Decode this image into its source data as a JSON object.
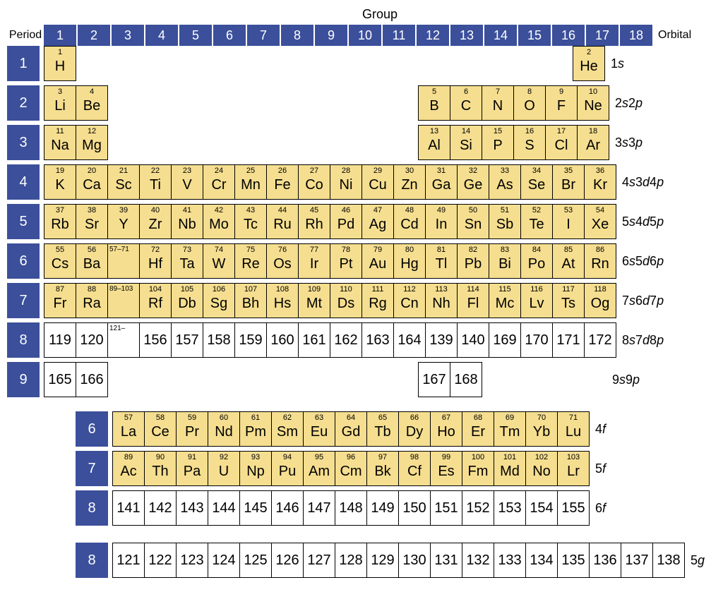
{
  "colors": {
    "header_bg": "#3b4f9b",
    "header_fg": "#ffffff",
    "element_bg": "#f5de8f",
    "future_bg": "#ffffff",
    "border": "#000000",
    "page_bg": "#ffffff",
    "text": "#000000"
  },
  "fontsize": {
    "title": 18,
    "header_num": 18,
    "period_num": 20,
    "atomic_num": 11,
    "symbol": 20,
    "orbital": 18
  },
  "labels": {
    "group": "Group",
    "period": "Period",
    "orbital": "Orbital"
  },
  "groups": [
    "1",
    "2",
    "3",
    "4",
    "5",
    "6",
    "7",
    "8",
    "9",
    "10",
    "11",
    "12",
    "13",
    "14",
    "15",
    "16",
    "17",
    "18"
  ],
  "periods": {
    "p1": {
      "num": "1",
      "orbital": "1s"
    },
    "p2": {
      "num": "2",
      "orbital": "2s2p"
    },
    "p3": {
      "num": "3",
      "orbital": "3s3p"
    },
    "p4": {
      "num": "4",
      "orbital": "4s3d4p"
    },
    "p5": {
      "num": "5",
      "orbital": "5s4d5p"
    },
    "p6": {
      "num": "6",
      "orbital": "6s5d6p"
    },
    "p7": {
      "num": "7",
      "orbital": "7s6d7p"
    },
    "p8": {
      "num": "8",
      "orbital": "8s7d8p"
    },
    "p9": {
      "num": "9",
      "orbital": "9s9p"
    },
    "f6": {
      "num": "6",
      "orbital": "4f"
    },
    "f7": {
      "num": "7",
      "orbital": "5f"
    },
    "f8": {
      "num": "8",
      "orbital": "6f"
    },
    "g8": {
      "num": "8",
      "orbital": "5g"
    }
  },
  "elements": {
    "H": {
      "n": "1",
      "s": "H"
    },
    "He": {
      "n": "2",
      "s": "He"
    },
    "Li": {
      "n": "3",
      "s": "Li"
    },
    "Be": {
      "n": "4",
      "s": "Be"
    },
    "B": {
      "n": "5",
      "s": "B"
    },
    "C": {
      "n": "6",
      "s": "C"
    },
    "N": {
      "n": "7",
      "s": "N"
    },
    "O": {
      "n": "8",
      "s": "O"
    },
    "F": {
      "n": "9",
      "s": "F"
    },
    "Ne": {
      "n": "10",
      "s": "Ne"
    },
    "Na": {
      "n": "11",
      "s": "Na"
    },
    "Mg": {
      "n": "12",
      "s": "Mg"
    },
    "Al": {
      "n": "13",
      "s": "Al"
    },
    "Si": {
      "n": "14",
      "s": "Si"
    },
    "P": {
      "n": "15",
      "s": "P"
    },
    "S": {
      "n": "16",
      "s": "S"
    },
    "Cl": {
      "n": "17",
      "s": "Cl"
    },
    "Ar": {
      "n": "18",
      "s": "Ar"
    },
    "K": {
      "n": "19",
      "s": "K"
    },
    "Ca": {
      "n": "20",
      "s": "Ca"
    },
    "Sc": {
      "n": "21",
      "s": "Sc"
    },
    "Ti": {
      "n": "22",
      "s": "Ti"
    },
    "V": {
      "n": "23",
      "s": "V"
    },
    "Cr": {
      "n": "24",
      "s": "Cr"
    },
    "Mn": {
      "n": "25",
      "s": "Mn"
    },
    "Fe": {
      "n": "26",
      "s": "Fe"
    },
    "Co": {
      "n": "27",
      "s": "Co"
    },
    "Ni": {
      "n": "28",
      "s": "Ni"
    },
    "Cu": {
      "n": "29",
      "s": "Cu"
    },
    "Zn": {
      "n": "30",
      "s": "Zn"
    },
    "Ga": {
      "n": "31",
      "s": "Ga"
    },
    "Ge": {
      "n": "32",
      "s": "Ge"
    },
    "As": {
      "n": "33",
      "s": "As"
    },
    "Se": {
      "n": "34",
      "s": "Se"
    },
    "Br": {
      "n": "35",
      "s": "Br"
    },
    "Kr": {
      "n": "36",
      "s": "Kr"
    },
    "Rb": {
      "n": "37",
      "s": "Rb"
    },
    "Sr": {
      "n": "38",
      "s": "Sr"
    },
    "Y": {
      "n": "39",
      "s": "Y"
    },
    "Zr": {
      "n": "40",
      "s": "Zr"
    },
    "Nb": {
      "n": "41",
      "s": "Nb"
    },
    "Mo": {
      "n": "42",
      "s": "Mo"
    },
    "Tc": {
      "n": "43",
      "s": "Tc"
    },
    "Ru": {
      "n": "44",
      "s": "Ru"
    },
    "Rh": {
      "n": "45",
      "s": "Rh"
    },
    "Pd": {
      "n": "46",
      "s": "Pd"
    },
    "Ag": {
      "n": "47",
      "s": "Ag"
    },
    "Cd": {
      "n": "48",
      "s": "Cd"
    },
    "In": {
      "n": "49",
      "s": "In"
    },
    "Sn": {
      "n": "50",
      "s": "Sn"
    },
    "Sb": {
      "n": "51",
      "s": "Sb"
    },
    "Te": {
      "n": "52",
      "s": "Te"
    },
    "I": {
      "n": "53",
      "s": "I"
    },
    "Xe": {
      "n": "54",
      "s": "Xe"
    },
    "Cs": {
      "n": "55",
      "s": "Cs"
    },
    "Ba": {
      "n": "56",
      "s": "Ba"
    },
    "LaLu": {
      "n": "57–71",
      "s": ""
    },
    "Hf": {
      "n": "72",
      "s": "Hf"
    },
    "Ta": {
      "n": "73",
      "s": "Ta"
    },
    "W": {
      "n": "74",
      "s": "W"
    },
    "Re": {
      "n": "75",
      "s": "Re"
    },
    "Os": {
      "n": "76",
      "s": "Os"
    },
    "Ir": {
      "n": "77",
      "s": "Ir"
    },
    "Pt": {
      "n": "78",
      "s": "Pt"
    },
    "Au": {
      "n": "79",
      "s": "Au"
    },
    "Hg": {
      "n": "80",
      "s": "Hg"
    },
    "Tl": {
      "n": "81",
      "s": "Tl"
    },
    "Pb": {
      "n": "82",
      "s": "Pb"
    },
    "Bi": {
      "n": "83",
      "s": "Bi"
    },
    "Po": {
      "n": "84",
      "s": "Po"
    },
    "At": {
      "n": "85",
      "s": "At"
    },
    "Rn": {
      "n": "86",
      "s": "Rn"
    },
    "Fr": {
      "n": "87",
      "s": "Fr"
    },
    "Ra": {
      "n": "88",
      "s": "Ra"
    },
    "AcLr": {
      "n": "89–103",
      "s": ""
    },
    "Rf": {
      "n": "104",
      "s": "Rf"
    },
    "Db": {
      "n": "105",
      "s": "Db"
    },
    "Sg": {
      "n": "106",
      "s": "Sg"
    },
    "Bh": {
      "n": "107",
      "s": "Bh"
    },
    "Hs": {
      "n": "108",
      "s": "Hs"
    },
    "Mt": {
      "n": "109",
      "s": "Mt"
    },
    "Ds": {
      "n": "110",
      "s": "Ds"
    },
    "Rg": {
      "n": "111",
      "s": "Rg"
    },
    "Cn": {
      "n": "112",
      "s": "Cn"
    },
    "Nh": {
      "n": "113",
      "s": "Nh"
    },
    "Fl": {
      "n": "114",
      "s": "Fl"
    },
    "Mc": {
      "n": "115",
      "s": "Mc"
    },
    "Lv": {
      "n": "116",
      "s": "Lv"
    },
    "Ts": {
      "n": "117",
      "s": "Ts"
    },
    "Og": {
      "n": "118",
      "s": "Og"
    },
    "e119": {
      "n": "",
      "s": "119"
    },
    "e120": {
      "n": "",
      "s": "120"
    },
    "e121r": {
      "n": "121–",
      "s": ""
    },
    "e156": {
      "n": "",
      "s": "156"
    },
    "e157": {
      "n": "",
      "s": "157"
    },
    "e158": {
      "n": "",
      "s": "158"
    },
    "e159": {
      "n": "",
      "s": "159"
    },
    "e160": {
      "n": "",
      "s": "160"
    },
    "e161": {
      "n": "",
      "s": "161"
    },
    "e162": {
      "n": "",
      "s": "162"
    },
    "e163": {
      "n": "",
      "s": "163"
    },
    "e164": {
      "n": "",
      "s": "164"
    },
    "e139": {
      "n": "",
      "s": "139"
    },
    "e140": {
      "n": "",
      "s": "140"
    },
    "e169": {
      "n": "",
      "s": "169"
    },
    "e170": {
      "n": "",
      "s": "170"
    },
    "e171": {
      "n": "",
      "s": "171"
    },
    "e172": {
      "n": "",
      "s": "172"
    },
    "e165": {
      "n": "",
      "s": "165"
    },
    "e166": {
      "n": "",
      "s": "166"
    },
    "e167": {
      "n": "",
      "s": "167"
    },
    "e168": {
      "n": "",
      "s": "168"
    },
    "La": {
      "n": "57",
      "s": "La"
    },
    "Ce": {
      "n": "58",
      "s": "Ce"
    },
    "Pr": {
      "n": "59",
      "s": "Pr"
    },
    "Nd": {
      "n": "60",
      "s": "Nd"
    },
    "Pm": {
      "n": "61",
      "s": "Pm"
    },
    "Sm": {
      "n": "62",
      "s": "Sm"
    },
    "Eu": {
      "n": "63",
      "s": "Eu"
    },
    "Gd": {
      "n": "64",
      "s": "Gd"
    },
    "Tb": {
      "n": "65",
      "s": "Tb"
    },
    "Dy": {
      "n": "66",
      "s": "Dy"
    },
    "Ho": {
      "n": "67",
      "s": "Ho"
    },
    "Er": {
      "n": "68",
      "s": "Er"
    },
    "Tm": {
      "n": "69",
      "s": "Tm"
    },
    "Yb": {
      "n": "70",
      "s": "Yb"
    },
    "Lu": {
      "n": "71",
      "s": "Lu"
    },
    "Ac": {
      "n": "89",
      "s": "Ac"
    },
    "Th": {
      "n": "90",
      "s": "Th"
    },
    "Pa": {
      "n": "91",
      "s": "Pa"
    },
    "U": {
      "n": "92",
      "s": "U"
    },
    "Np": {
      "n": "93",
      "s": "Np"
    },
    "Pu": {
      "n": "94",
      "s": "Pu"
    },
    "Am": {
      "n": "95",
      "s": "Am"
    },
    "Cm": {
      "n": "96",
      "s": "Cm"
    },
    "Bk": {
      "n": "97",
      "s": "Bk"
    },
    "Cf": {
      "n": "98",
      "s": "Cf"
    },
    "Es": {
      "n": "99",
      "s": "Es"
    },
    "Fm": {
      "n": "100",
      "s": "Fm"
    },
    "Md": {
      "n": "101",
      "s": "Md"
    },
    "No": {
      "n": "102",
      "s": "No"
    },
    "Lr": {
      "n": "103",
      "s": "Lr"
    },
    "e141": {
      "n": "",
      "s": "141"
    },
    "e142": {
      "n": "",
      "s": "142"
    },
    "e143": {
      "n": "",
      "s": "143"
    },
    "e144": {
      "n": "",
      "s": "144"
    },
    "e145": {
      "n": "",
      "s": "145"
    },
    "e146": {
      "n": "",
      "s": "146"
    },
    "e147": {
      "n": "",
      "s": "147"
    },
    "e148": {
      "n": "",
      "s": "148"
    },
    "e149": {
      "n": "",
      "s": "149"
    },
    "e150": {
      "n": "",
      "s": "150"
    },
    "e151": {
      "n": "",
      "s": "151"
    },
    "e152": {
      "n": "",
      "s": "152"
    },
    "e153": {
      "n": "",
      "s": "153"
    },
    "e154": {
      "n": "",
      "s": "154"
    },
    "e155": {
      "n": "",
      "s": "155"
    },
    "e121": {
      "n": "",
      "s": "121"
    },
    "e122": {
      "n": "",
      "s": "122"
    },
    "e123": {
      "n": "",
      "s": "123"
    },
    "e124": {
      "n": "",
      "s": "124"
    },
    "e125": {
      "n": "",
      "s": "125"
    },
    "e126": {
      "n": "",
      "s": "126"
    },
    "e127": {
      "n": "",
      "s": "127"
    },
    "e128": {
      "n": "",
      "s": "128"
    },
    "e129": {
      "n": "",
      "s": "129"
    },
    "e130": {
      "n": "",
      "s": "130"
    },
    "e131": {
      "n": "",
      "s": "131"
    },
    "e132": {
      "n": "",
      "s": "132"
    },
    "e133": {
      "n": "",
      "s": "133"
    },
    "e134": {
      "n": "",
      "s": "134"
    },
    "e135": {
      "n": "",
      "s": "135"
    },
    "e136": {
      "n": "",
      "s": "136"
    },
    "e137": {
      "n": "",
      "s": "137"
    },
    "e138": {
      "n": "",
      "s": "138"
    }
  },
  "layout": {
    "main": [
      {
        "period": "p1",
        "cells": [
          "H",
          null,
          null,
          null,
          null,
          null,
          null,
          null,
          null,
          null,
          null,
          null,
          null,
          null,
          null,
          null,
          null,
          "He"
        ]
      },
      {
        "period": "p2",
        "cells": [
          "Li",
          "Be",
          null,
          null,
          null,
          null,
          null,
          null,
          null,
          null,
          null,
          null,
          "B",
          "C",
          "N",
          "O",
          "F",
          "Ne"
        ]
      },
      {
        "period": "p3",
        "cells": [
          "Na",
          "Mg",
          null,
          null,
          null,
          null,
          null,
          null,
          null,
          null,
          null,
          null,
          "Al",
          "Si",
          "P",
          "S",
          "Cl",
          "Ar"
        ]
      },
      {
        "period": "p4",
        "cells": [
          "K",
          "Ca",
          "Sc",
          "Ti",
          "V",
          "Cr",
          "Mn",
          "Fe",
          "Co",
          "Ni",
          "Cu",
          "Zn",
          "Ga",
          "Ge",
          "As",
          "Se",
          "Br",
          "Kr"
        ]
      },
      {
        "period": "p5",
        "cells": [
          "Rb",
          "Sr",
          "Y",
          "Zr",
          "Nb",
          "Mo",
          "Tc",
          "Ru",
          "Rh",
          "Pd",
          "Ag",
          "Cd",
          "In",
          "Sn",
          "Sb",
          "Te",
          "I",
          "Xe"
        ]
      },
      {
        "period": "p6",
        "cells": [
          "Cs",
          "Ba",
          "LaLu",
          "Hf",
          "Ta",
          "W",
          "Re",
          "Os",
          "Ir",
          "Pt",
          "Au",
          "Hg",
          "Tl",
          "Pb",
          "Bi",
          "Po",
          "At",
          "Rn"
        ]
      },
      {
        "period": "p7",
        "cells": [
          "Fr",
          "Ra",
          "AcLr",
          "Rf",
          "Db",
          "Sg",
          "Bh",
          "Hs",
          "Mt",
          "Ds",
          "Rg",
          "Cn",
          "Nh",
          "Fl",
          "Mc",
          "Lv",
          "Ts",
          "Og"
        ]
      },
      {
        "period": "p8",
        "cells": [
          "e119",
          "e120",
          "e121r",
          "e156",
          "e157",
          "e158",
          "e159",
          "e160",
          "e161",
          "e162",
          "e163",
          "e164",
          "e139",
          "e140",
          "e169",
          "e170",
          "e171",
          "e172"
        ],
        "future": true
      },
      {
        "period": "p9",
        "cells": [
          "e165",
          "e166",
          null,
          null,
          null,
          null,
          null,
          null,
          null,
          null,
          null,
          null,
          "e167",
          "e168",
          null,
          null,
          null,
          null
        ],
        "future": true
      }
    ],
    "fblock": [
      {
        "period": "f6",
        "cells": [
          "La",
          "Ce",
          "Pr",
          "Nd",
          "Pm",
          "Sm",
          "Eu",
          "Gd",
          "Tb",
          "Dy",
          "Ho",
          "Er",
          "Tm",
          "Yb",
          "Lu"
        ]
      },
      {
        "period": "f7",
        "cells": [
          "Ac",
          "Th",
          "Pa",
          "U",
          "Np",
          "Pu",
          "Am",
          "Cm",
          "Bk",
          "Cf",
          "Es",
          "Fm",
          "Md",
          "No",
          "Lr"
        ]
      },
      {
        "period": "f8",
        "cells": [
          "e141",
          "e142",
          "e143",
          "e144",
          "e145",
          "e146",
          "e147",
          "e148",
          "e149",
          "e150",
          "e151",
          "e152",
          "e153",
          "e154",
          "e155"
        ],
        "future": true
      }
    ],
    "gblock": [
      {
        "period": "g8",
        "cells": [
          "e121",
          "e122",
          "e123",
          "e124",
          "e125",
          "e126",
          "e127",
          "e128",
          "e129",
          "e130",
          "e131",
          "e132",
          "e133",
          "e134",
          "e135",
          "e136",
          "e137",
          "e138"
        ],
        "future": true
      }
    ]
  }
}
